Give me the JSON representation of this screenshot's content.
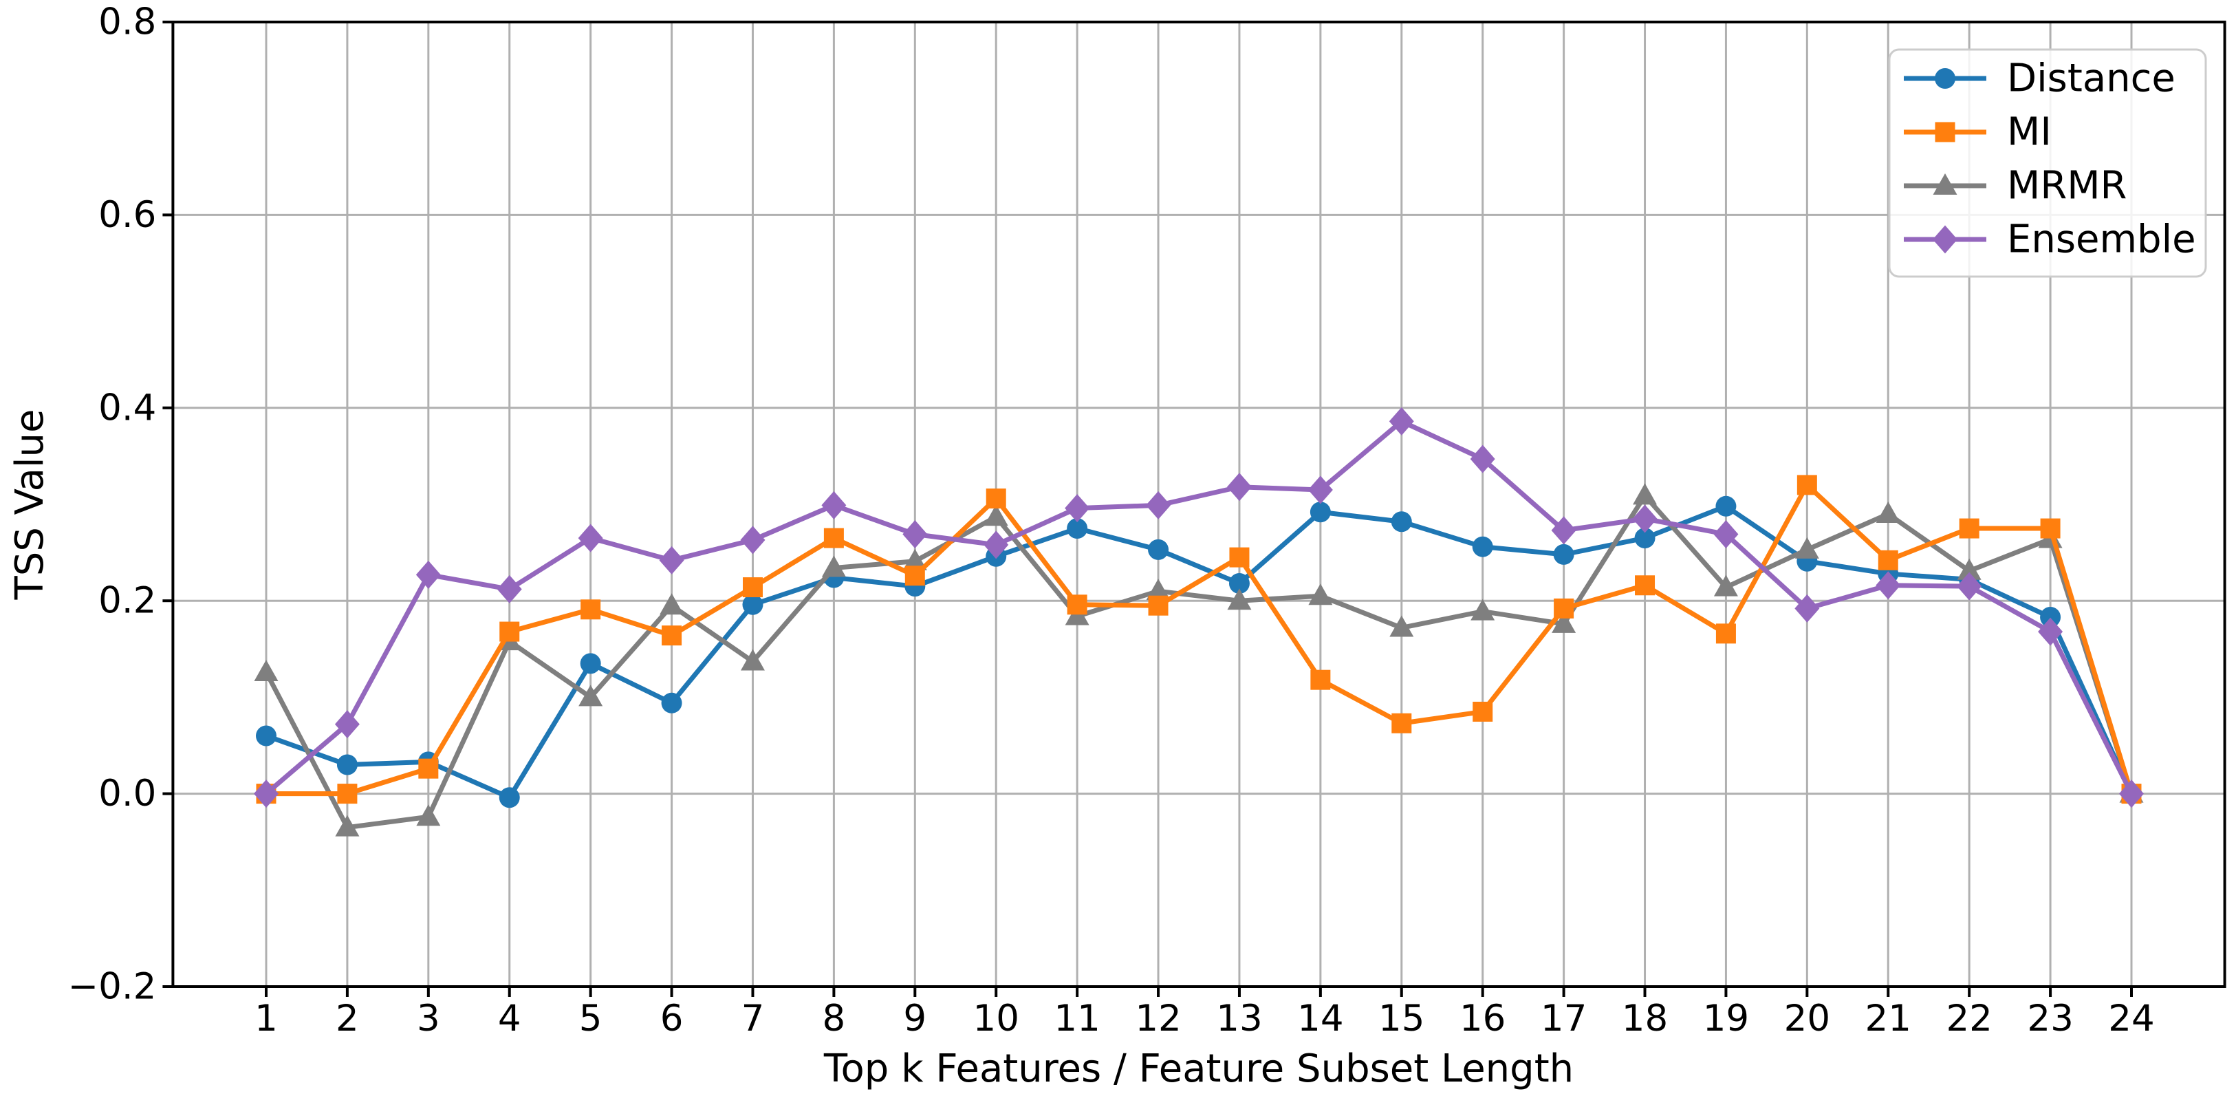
{
  "window": {
    "background": "#ffffff"
  },
  "chart_data": {
    "type": "line",
    "title": "",
    "xlabel": "Top k Features / Feature Subset Length",
    "ylabel": "TSS Value",
    "x": [
      1,
      2,
      3,
      4,
      5,
      6,
      7,
      8,
      9,
      10,
      11,
      12,
      13,
      14,
      15,
      16,
      17,
      18,
      19,
      20,
      21,
      22,
      23,
      24
    ],
    "ylim": [
      -0.2,
      0.8
    ],
    "y_ticks": [
      -0.2,
      0.0,
      0.2,
      0.4,
      0.6,
      0.8
    ],
    "y_tick_labels": [
      "−0.2",
      "0.0",
      "0.2",
      "0.4",
      "0.6",
      "0.8"
    ],
    "grid": true,
    "legend": {
      "location": "upper right",
      "entries": [
        "Distance",
        "MI",
        "MRMR",
        "Ensemble"
      ]
    },
    "colors": {
      "grid": "#b0b0b0",
      "axis": "#000000",
      "legend_border": "#cccccc",
      "legend_fill": "#ffffff"
    },
    "series": [
      {
        "name": "Distance",
        "color": "#1f77b4",
        "marker": "circle",
        "values": [
          0.06,
          0.03,
          0.033,
          -0.004,
          0.135,
          0.094,
          0.196,
          0.224,
          0.215,
          0.246,
          0.275,
          0.253,
          0.218,
          0.292,
          0.282,
          0.256,
          0.248,
          0.265,
          0.298,
          0.241,
          0.228,
          0.222,
          0.183,
          0.0
        ]
      },
      {
        "name": "MI",
        "color": "#ff7f0e",
        "marker": "square",
        "values": [
          0.0,
          0.0,
          0.026,
          0.168,
          0.191,
          0.164,
          0.214,
          0.265,
          0.226,
          0.306,
          0.196,
          0.195,
          0.245,
          0.118,
          0.073,
          0.085,
          0.192,
          0.216,
          0.166,
          0.32,
          0.242,
          0.275,
          0.275,
          0.0
        ]
      },
      {
        "name": "MRMR",
        "color": "#7f7f7f",
        "marker": "triangle",
        "values": [
          0.126,
          -0.035,
          -0.024,
          0.158,
          0.1,
          0.195,
          0.137,
          0.234,
          0.241,
          0.287,
          0.184,
          0.21,
          0.2,
          0.205,
          0.172,
          0.189,
          0.176,
          0.309,
          0.214,
          0.253,
          0.29,
          0.231,
          0.264,
          0.0
        ]
      },
      {
        "name": "Ensemble",
        "color": "#9467bd",
        "marker": "diamond",
        "values": [
          0.0,
          0.072,
          0.227,
          0.212,
          0.265,
          0.242,
          0.263,
          0.299,
          0.269,
          0.258,
          0.296,
          0.299,
          0.318,
          0.315,
          0.386,
          0.347,
          0.273,
          0.285,
          0.269,
          0.192,
          0.216,
          0.215,
          0.168,
          0.0
        ]
      }
    ]
  }
}
